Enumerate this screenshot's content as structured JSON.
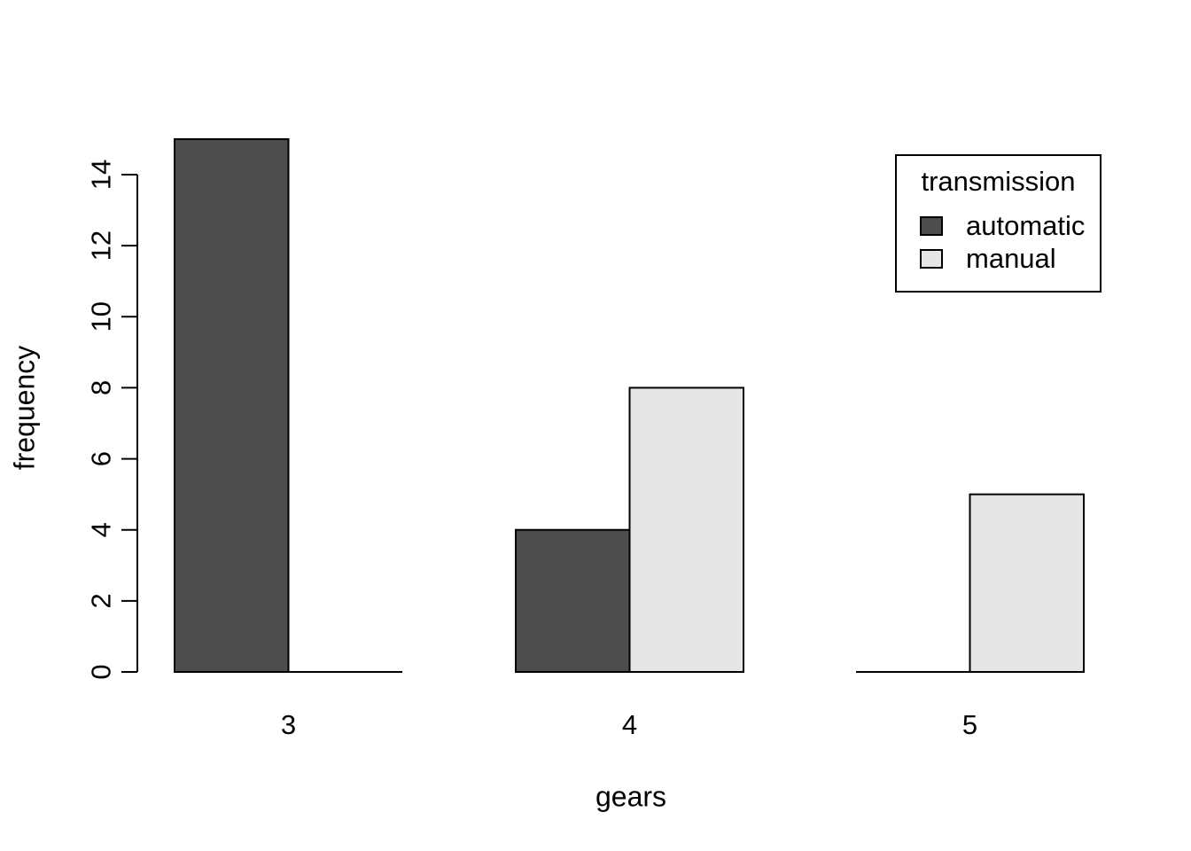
{
  "chart_data": {
    "type": "bar",
    "grouped": true,
    "title": "",
    "xlabel": "gears",
    "ylabel": "frequency",
    "categories": [
      "3",
      "4",
      "5"
    ],
    "series": [
      {
        "name": "automatic",
        "color": "#4d4d4d",
        "values": [
          15,
          4,
          0
        ]
      },
      {
        "name": "manual",
        "color": "#e6e6e6",
        "values": [
          0,
          8,
          5
        ]
      }
    ],
    "yticks": [
      0,
      2,
      4,
      6,
      8,
      10,
      12,
      14
    ],
    "ylim": [
      0,
      15
    ],
    "grid": false,
    "legend_title": "transmission",
    "legend_position": "top-right",
    "bar_edge_color": "#000000",
    "axis_color": "#000000",
    "background": "#ffffff"
  }
}
